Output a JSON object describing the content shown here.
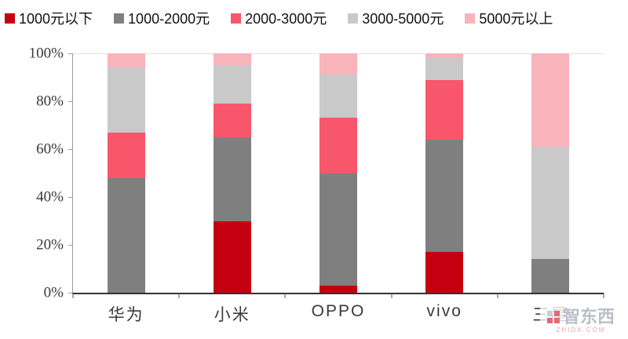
{
  "chart_data": {
    "type": "bar",
    "stacked": true,
    "percent": true,
    "title": "",
    "xlabel": "",
    "ylabel": "",
    "categories": [
      "华为",
      "小米",
      "OPPO",
      "vivo",
      "三星"
    ],
    "series": [
      {
        "name": "1000元以下",
        "color": "#c40010",
        "values": [
          0,
          30,
          3,
          17,
          0
        ]
      },
      {
        "name": "1000-2000元",
        "color": "#7f7f7f",
        "values": [
          48,
          35,
          47,
          47,
          14
        ]
      },
      {
        "name": "2000-3000元",
        "color": "#f8566b",
        "values": [
          19,
          14,
          23,
          25,
          0
        ]
      },
      {
        "name": "3000-5000元",
        "color": "#c9c9c9",
        "values": [
          27,
          16,
          18,
          9,
          47
        ]
      },
      {
        "name": "5000元以上",
        "color": "#f9b3ba",
        "values": [
          6,
          5,
          9,
          2,
          39
        ]
      }
    ],
    "ylim": [
      0,
      100
    ],
    "yticks": [
      0,
      20,
      40,
      60,
      80,
      100
    ],
    "ytick_suffix": "%",
    "legend_position": "top",
    "grid": false
  },
  "watermark": {
    "text": "智东西",
    "subtext": "ZHIDX.COM"
  }
}
